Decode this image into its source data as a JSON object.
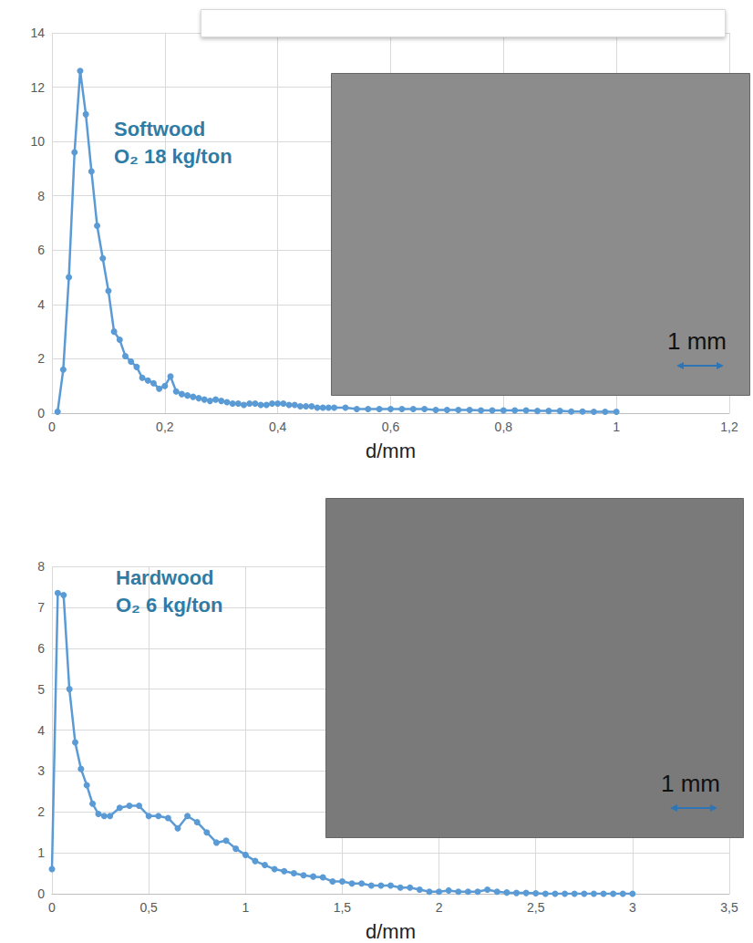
{
  "chart_data": [
    {
      "type": "line",
      "annotation": [
        "Softwood",
        "O₂ 18 kg/ton"
      ],
      "scale_bar": "1 mm",
      "xlabel": "d/mm",
      "color": "#5b9bd5",
      "marker": "circle",
      "grid": true,
      "x": [
        0.01,
        0.02,
        0.03,
        0.04,
        0.05,
        0.06,
        0.07,
        0.08,
        0.09,
        0.1,
        0.11,
        0.12,
        0.13,
        0.14,
        0.15,
        0.16,
        0.17,
        0.18,
        0.19,
        0.2,
        0.21,
        0.22,
        0.23,
        0.24,
        0.25,
        0.26,
        0.27,
        0.28,
        0.29,
        0.3,
        0.31,
        0.32,
        0.33,
        0.34,
        0.35,
        0.36,
        0.37,
        0.38,
        0.39,
        0.4,
        0.41,
        0.42,
        0.43,
        0.44,
        0.45,
        0.46,
        0.47,
        0.48,
        0.49,
        0.5,
        0.52,
        0.54,
        0.56,
        0.58,
        0.6,
        0.62,
        0.64,
        0.66,
        0.68,
        0.7,
        0.72,
        0.74,
        0.76,
        0.78,
        0.8,
        0.82,
        0.84,
        0.86,
        0.88,
        0.9,
        0.92,
        0.94,
        0.96,
        0.98,
        1.0
      ],
      "values": [
        0.05,
        1.6,
        5.0,
        9.6,
        12.6,
        11.0,
        8.9,
        6.9,
        5.7,
        4.5,
        3.0,
        2.7,
        2.1,
        1.9,
        1.7,
        1.3,
        1.2,
        1.1,
        0.9,
        1.0,
        1.35,
        0.8,
        0.7,
        0.65,
        0.6,
        0.55,
        0.5,
        0.45,
        0.5,
        0.45,
        0.4,
        0.35,
        0.35,
        0.3,
        0.35,
        0.35,
        0.3,
        0.3,
        0.35,
        0.35,
        0.35,
        0.3,
        0.3,
        0.25,
        0.25,
        0.25,
        0.2,
        0.2,
        0.2,
        0.2,
        0.2,
        0.15,
        0.15,
        0.15,
        0.15,
        0.15,
        0.15,
        0.15,
        0.12,
        0.12,
        0.12,
        0.12,
        0.1,
        0.1,
        0.1,
        0.1,
        0.1,
        0.08,
        0.08,
        0.08,
        0.06,
        0.06,
        0.05,
        0.05,
        0.05
      ],
      "xlim": [
        0,
        1.2
      ],
      "xticks": [
        0,
        {
          "value": 0.2,
          "label": "0,2"
        },
        {
          "value": 0.4,
          "label": "0,4"
        },
        {
          "value": 0.6,
          "label": "0,6"
        },
        {
          "value": 0.8,
          "label": "0,8"
        },
        1,
        {
          "value": 1.2,
          "label": "1,2"
        }
      ],
      "ylim": [
        0,
        14
      ],
      "yticks": [
        0,
        2,
        4,
        6,
        8,
        10,
        12,
        14
      ]
    },
    {
      "type": "line",
      "annotation": [
        "Hardwood",
        "O₂ 6 kg/ton"
      ],
      "scale_bar": "1 mm",
      "xlabel": "d/mm",
      "color": "#5b9bd5",
      "marker": "circle",
      "grid": true,
      "x": [
        0,
        0.03,
        0.06,
        0.09,
        0.12,
        0.15,
        0.18,
        0.21,
        0.24,
        0.27,
        0.3,
        0.35,
        0.4,
        0.45,
        0.5,
        0.55,
        0.6,
        0.65,
        0.7,
        0.75,
        0.8,
        0.85,
        0.9,
        0.95,
        1.0,
        1.05,
        1.1,
        1.15,
        1.2,
        1.25,
        1.3,
        1.35,
        1.4,
        1.45,
        1.5,
        1.55,
        1.6,
        1.65,
        1.7,
        1.75,
        1.8,
        1.85,
        1.9,
        1.95,
        2.0,
        2.05,
        2.1,
        2.15,
        2.2,
        2.25,
        2.3,
        2.35,
        2.4,
        2.45,
        2.5,
        2.55,
        2.6,
        2.65,
        2.7,
        2.75,
        2.8,
        2.85,
        2.9,
        2.95,
        3.0
      ],
      "values": [
        0.6,
        7.35,
        7.3,
        5.0,
        3.7,
        3.05,
        2.65,
        2.2,
        1.95,
        1.9,
        1.9,
        2.1,
        2.15,
        2.15,
        1.9,
        1.9,
        1.85,
        1.6,
        1.9,
        1.75,
        1.5,
        1.25,
        1.3,
        1.1,
        0.95,
        0.8,
        0.7,
        0.6,
        0.55,
        0.5,
        0.45,
        0.42,
        0.4,
        0.3,
        0.3,
        0.25,
        0.25,
        0.2,
        0.2,
        0.2,
        0.15,
        0.15,
        0.1,
        0.05,
        0.05,
        0.08,
        0.05,
        0.05,
        0.05,
        0.1,
        0.05,
        0.03,
        0.02,
        0.02,
        0.01,
        0,
        0,
        0,
        0,
        0,
        0,
        0,
        0,
        0,
        0
      ],
      "xlim": [
        0,
        3.5
      ],
      "xticks": [
        0,
        {
          "value": 0.5,
          "label": "0,5"
        },
        1,
        {
          "value": 1.5,
          "label": "1,5"
        },
        2,
        {
          "value": 2.5,
          "label": "2,5"
        },
        3,
        {
          "value": 3.5,
          "label": "3,5"
        }
      ],
      "ylim": [
        0,
        8
      ],
      "yticks": [
        0,
        1,
        2,
        3,
        4,
        5,
        6,
        7,
        8
      ]
    }
  ]
}
